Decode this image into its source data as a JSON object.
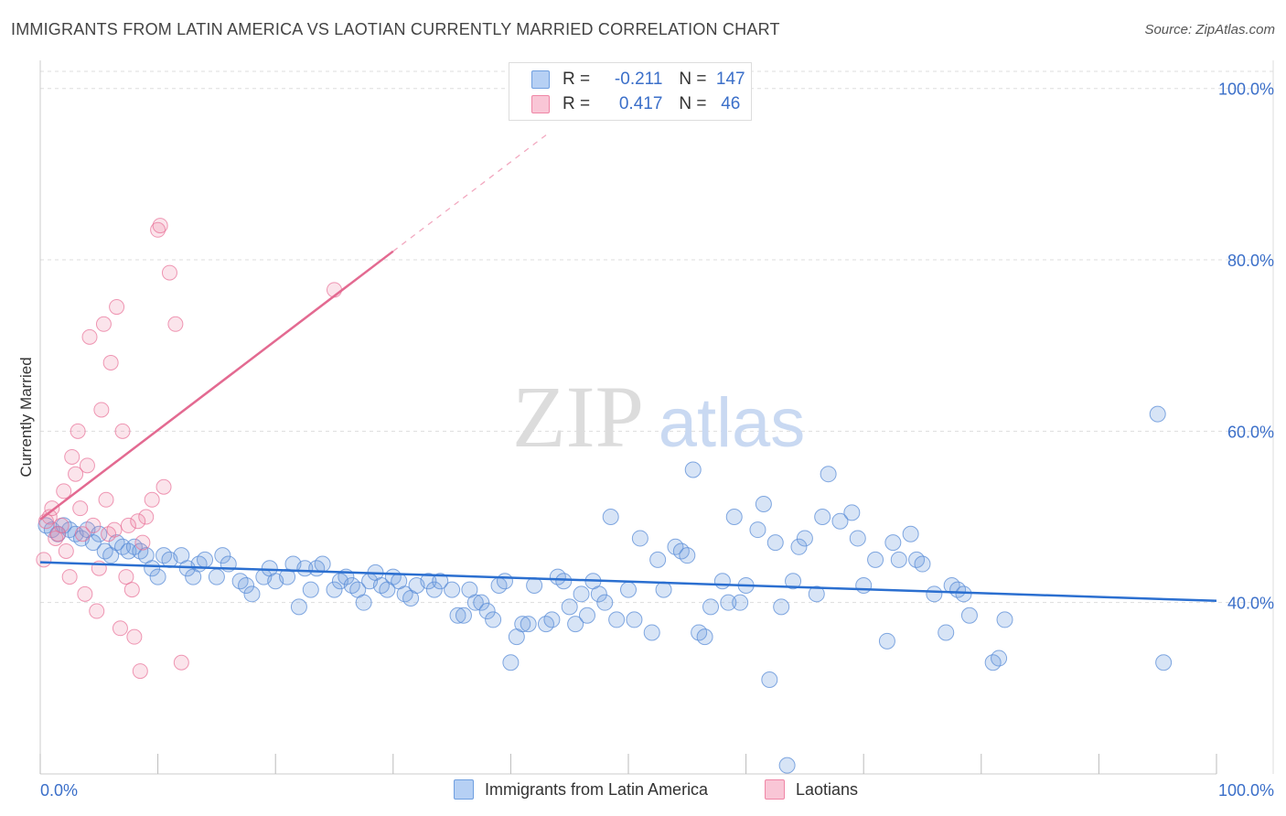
{
  "title": "IMMIGRANTS FROM LATIN AMERICA VS LAOTIAN CURRENTLY MARRIED CORRELATION CHART",
  "source": "Source: ZipAtlas.com",
  "watermark": {
    "zip": "ZIP",
    "atlas": "atlas"
  },
  "legend": {
    "r_label": "R =",
    "n_label": "N =",
    "rows": [
      {
        "r": "-0.211",
        "n": "147"
      },
      {
        "r": "0.417",
        "n": "46"
      }
    ]
  },
  "colors": {
    "blue": "#6f9fe0",
    "blue_line": "#2b6fd0",
    "pink": "#ef86a6",
    "pink_line": "#e36a91",
    "axis_text": "#3b6fc9"
  },
  "chart_data": {
    "type": "scatter",
    "title": "IMMIGRANTS FROM LATIN AMERICA VS LAOTIAN CURRENTLY MARRIED CORRELATION CHART",
    "xlabel": "",
    "ylabel": "Currently Married",
    "x_tick_labels": [
      "0.0%",
      "100.0%"
    ],
    "y_tick_labels": [
      "40.0%",
      "60.0%",
      "80.0%",
      "100.0%"
    ],
    "xlim": [
      0,
      100
    ],
    "ylim": [
      20,
      102
    ],
    "grid": true,
    "legend_position": "bottom",
    "series": [
      {
        "name": "Immigrants from Latin America",
        "color": "#6f9fe0",
        "trend": {
          "x": [
            0,
            100
          ],
          "y": [
            44.7,
            40.2
          ]
        },
        "points": [
          [
            0.5,
            49
          ],
          [
            1,
            48.5
          ],
          [
            1.5,
            48
          ],
          [
            2,
            49
          ],
          [
            2.5,
            48.5
          ],
          [
            3,
            48
          ],
          [
            3.5,
            47.5
          ],
          [
            4,
            48.5
          ],
          [
            5,
            48
          ],
          [
            4.5,
            47
          ],
          [
            5.5,
            46
          ],
          [
            6,
            45.5
          ],
          [
            6.5,
            47
          ],
          [
            7,
            46.5
          ],
          [
            7.5,
            46
          ],
          [
            8,
            46.5
          ],
          [
            8.5,
            46
          ],
          [
            9,
            45.5
          ],
          [
            9.5,
            44
          ],
          [
            10,
            43
          ],
          [
            10.5,
            45.5
          ],
          [
            11,
            45
          ],
          [
            12,
            45.5
          ],
          [
            12.5,
            44
          ],
          [
            13,
            43
          ],
          [
            13.5,
            44.5
          ],
          [
            14,
            45
          ],
          [
            15,
            43
          ],
          [
            15.5,
            45.5
          ],
          [
            16,
            44.5
          ],
          [
            17,
            42.5
          ],
          [
            17.5,
            42
          ],
          [
            18,
            41
          ],
          [
            19,
            43
          ],
          [
            19.5,
            44
          ],
          [
            20,
            42.5
          ],
          [
            21,
            43
          ],
          [
            21.5,
            44.5
          ],
          [
            22,
            39.5
          ],
          [
            22.5,
            44
          ],
          [
            23,
            41.5
          ],
          [
            23.5,
            44
          ],
          [
            24,
            44.5
          ],
          [
            25,
            41.5
          ],
          [
            25.5,
            42.5
          ],
          [
            26,
            43
          ],
          [
            26.5,
            42
          ],
          [
            27,
            41.5
          ],
          [
            27.5,
            40
          ],
          [
            28,
            42.5
          ],
          [
            28.5,
            43.5
          ],
          [
            29,
            42
          ],
          [
            29.5,
            41.5
          ],
          [
            30,
            43
          ],
          [
            30.5,
            42.5
          ],
          [
            31,
            41
          ],
          [
            31.5,
            40.5
          ],
          [
            32,
            42
          ],
          [
            33,
            42.5
          ],
          [
            33.5,
            41.5
          ],
          [
            34,
            42.5
          ],
          [
            35,
            41.5
          ],
          [
            35.5,
            38.5
          ],
          [
            36,
            38.5
          ],
          [
            36.5,
            41.5
          ],
          [
            37,
            40
          ],
          [
            37.5,
            40
          ],
          [
            38,
            39
          ],
          [
            38.5,
            38
          ],
          [
            39,
            42
          ],
          [
            39.5,
            42.5
          ],
          [
            40,
            33
          ],
          [
            40.5,
            36
          ],
          [
            41,
            37.5
          ],
          [
            41.5,
            37.5
          ],
          [
            42,
            42
          ],
          [
            43,
            37.5
          ],
          [
            43.5,
            38
          ],
          [
            44,
            43
          ],
          [
            44.5,
            42.5
          ],
          [
            45,
            39.5
          ],
          [
            45.5,
            37.5
          ],
          [
            46,
            41
          ],
          [
            46.5,
            38.5
          ],
          [
            47,
            42.5
          ],
          [
            47.5,
            41
          ],
          [
            48,
            40
          ],
          [
            48.5,
            50
          ],
          [
            49,
            38
          ],
          [
            50,
            41.5
          ],
          [
            50.5,
            38
          ],
          [
            51,
            47.5
          ],
          [
            52,
            36.5
          ],
          [
            52.5,
            45
          ],
          [
            53,
            41.5
          ],
          [
            54,
            46.5
          ],
          [
            54.5,
            46
          ],
          [
            55,
            45.5
          ],
          [
            55.5,
            55.5
          ],
          [
            56,
            36.5
          ],
          [
            56.5,
            36
          ],
          [
            57,
            39.5
          ],
          [
            58,
            42.5
          ],
          [
            58.5,
            40
          ],
          [
            59,
            50
          ],
          [
            59.5,
            40
          ],
          [
            60,
            42
          ],
          [
            61,
            48.5
          ],
          [
            61.5,
            51.5
          ],
          [
            62,
            31
          ],
          [
            62.5,
            47
          ],
          [
            63,
            39.5
          ],
          [
            64,
            42.5
          ],
          [
            64.5,
            46.5
          ],
          [
            65,
            47.5
          ],
          [
            66,
            41
          ],
          [
            66.5,
            50
          ],
          [
            67,
            55
          ],
          [
            68,
            49.5
          ],
          [
            69,
            50.5
          ],
          [
            69.5,
            47.5
          ],
          [
            70,
            42
          ],
          [
            71,
            45
          ],
          [
            72,
            35.5
          ],
          [
            72.5,
            47
          ],
          [
            73,
            45
          ],
          [
            74,
            48
          ],
          [
            74.5,
            45
          ],
          [
            75,
            44.5
          ],
          [
            76,
            41
          ],
          [
            77,
            36.5
          ],
          [
            77.5,
            42
          ],
          [
            78,
            41.5
          ],
          [
            78.5,
            41
          ],
          [
            79,
            38.5
          ],
          [
            81,
            33
          ],
          [
            81.5,
            33.5
          ],
          [
            82,
            38
          ],
          [
            95,
            62
          ],
          [
            95.5,
            33
          ],
          [
            63.5,
            21
          ]
        ]
      },
      {
        "name": "Laotians",
        "color": "#ef86a6",
        "trend": {
          "x": [
            0,
            30
          ],
          "y": [
            49.7,
            81
          ]
        },
        "points": [
          [
            0.3,
            45
          ],
          [
            0.5,
            49.5
          ],
          [
            0.8,
            50
          ],
          [
            1,
            51
          ],
          [
            1.3,
            47.5
          ],
          [
            1.5,
            48
          ],
          [
            1.8,
            49
          ],
          [
            2,
            53
          ],
          [
            2.2,
            46
          ],
          [
            2.5,
            43
          ],
          [
            2.7,
            57
          ],
          [
            3,
            55
          ],
          [
            3.2,
            60
          ],
          [
            3.4,
            51
          ],
          [
            3.6,
            48
          ],
          [
            3.8,
            41
          ],
          [
            4,
            56
          ],
          [
            4.2,
            71
          ],
          [
            4.5,
            49
          ],
          [
            4.8,
            39
          ],
          [
            5,
            44
          ],
          [
            5.2,
            62.5
          ],
          [
            5.4,
            72.5
          ],
          [
            5.6,
            52
          ],
          [
            5.8,
            48
          ],
          [
            6,
            68
          ],
          [
            6.3,
            48.5
          ],
          [
            6.5,
            74.5
          ],
          [
            6.8,
            37
          ],
          [
            7,
            60
          ],
          [
            7.5,
            49
          ],
          [
            8,
            36
          ],
          [
            8.5,
            32
          ],
          [
            9,
            50
          ],
          [
            9.5,
            52
          ],
          [
            10.5,
            53.5
          ],
          [
            7.3,
            43
          ],
          [
            7.8,
            41.5
          ],
          [
            8.3,
            49.5
          ],
          [
            8.7,
            47
          ],
          [
            10,
            83.5
          ],
          [
            10.2,
            84
          ],
          [
            11,
            78.5
          ],
          [
            11.5,
            72.5
          ],
          [
            12,
            33
          ],
          [
            25,
            76.5
          ]
        ]
      }
    ]
  },
  "bottom_legend": [
    "Immigrants from Latin America",
    "Laotians"
  ]
}
